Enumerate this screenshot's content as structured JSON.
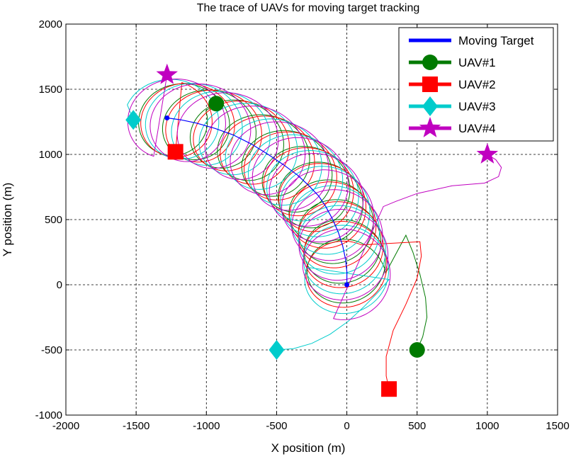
{
  "chart_data": {
    "type": "line",
    "title": "The trace of UAVs for moving target tracking",
    "xlabel": "X position (m)",
    "ylabel": "Y position (m)",
    "xlim": [
      -2000,
      1500
    ],
    "ylim": [
      -1000,
      2000
    ],
    "xticks": [
      -2000,
      -1500,
      -1000,
      -500,
      0,
      500,
      1000,
      1500
    ],
    "yticks": [
      -1000,
      -500,
      0,
      500,
      1000,
      1500,
      2000
    ],
    "grid": true,
    "legend_position": "top-right",
    "target": {
      "name": "Moving Target",
      "color": "#0000ff",
      "marker": "dot",
      "start": [
        0,
        0
      ],
      "end": [
        -1280,
        1280
      ],
      "path": [
        [
          0,
          0
        ],
        [
          0,
          100
        ],
        [
          -10,
          200
        ],
        [
          -30,
          300
        ],
        [
          -60,
          400
        ],
        [
          -100,
          500
        ],
        [
          -150,
          600
        ],
        [
          -200,
          680
        ],
        [
          -270,
          760
        ],
        [
          -350,
          840
        ],
        [
          -450,
          920
        ],
        [
          -560,
          1000
        ],
        [
          -680,
          1080
        ],
        [
          -810,
          1150
        ],
        [
          -940,
          1200
        ],
        [
          -1070,
          1240
        ],
        [
          -1180,
          1265
        ],
        [
          -1280,
          1280
        ]
      ]
    },
    "uavs": [
      {
        "name": "UAV#1",
        "color": "#007a00",
        "marker": "circle",
        "start": [
          500,
          -500
        ],
        "end": [
          -930,
          1390
        ],
        "approach": [
          [
            500,
            -500
          ],
          [
            540,
            -400
          ],
          [
            570,
            -250
          ],
          [
            560,
            -100
          ],
          [
            520,
            80
          ],
          [
            470,
            250
          ],
          [
            420,
            380
          ]
        ]
      },
      {
        "name": "UAV#2",
        "color": "#ff0000",
        "marker": "square",
        "start": [
          300,
          -800
        ],
        "end": [
          -1220,
          1020
        ],
        "approach": [
          [
            300,
            -800
          ],
          [
            280,
            -700
          ],
          [
            280,
            -550
          ],
          [
            330,
            -350
          ],
          [
            420,
            -150
          ],
          [
            500,
            50
          ],
          [
            530,
            220
          ],
          [
            520,
            330
          ]
        ]
      },
      {
        "name": "UAV#3",
        "color": "#00cccc",
        "marker": "diamond",
        "start": [
          -500,
          -500
        ],
        "end": [
          -1520,
          1265
        ],
        "approach": [
          [
            -500,
            -500
          ],
          [
            -380,
            -490
          ],
          [
            -250,
            -450
          ],
          [
            -120,
            -380
          ],
          [
            10,
            -280
          ],
          [
            120,
            -170
          ],
          [
            220,
            -60
          ],
          [
            300,
            40
          ]
        ]
      },
      {
        "name": "UAV#4",
        "color": "#c000c0",
        "marker": "star",
        "start": [
          1000,
          1000
        ],
        "end": [
          -1280,
          1610
        ],
        "approach": [
          [
            1000,
            1000
          ],
          [
            1060,
            960
          ],
          [
            1100,
            900
          ],
          [
            1080,
            830
          ],
          [
            980,
            780
          ],
          [
            750,
            760
          ],
          [
            500,
            700
          ],
          [
            350,
            640
          ],
          [
            260,
            600
          ]
        ]
      }
    ],
    "legend": [
      {
        "label": "Moving Target",
        "color": "#0000ff",
        "marker": "dot"
      },
      {
        "label": "UAV#1",
        "color": "#007a00",
        "marker": "circle"
      },
      {
        "label": "UAV#2",
        "color": "#ff0000",
        "marker": "square"
      },
      {
        "label": "UAV#3",
        "color": "#00cccc",
        "marker": "diamond"
      },
      {
        "label": "UAV#4",
        "color": "#c000c0",
        "marker": "star"
      }
    ]
  }
}
